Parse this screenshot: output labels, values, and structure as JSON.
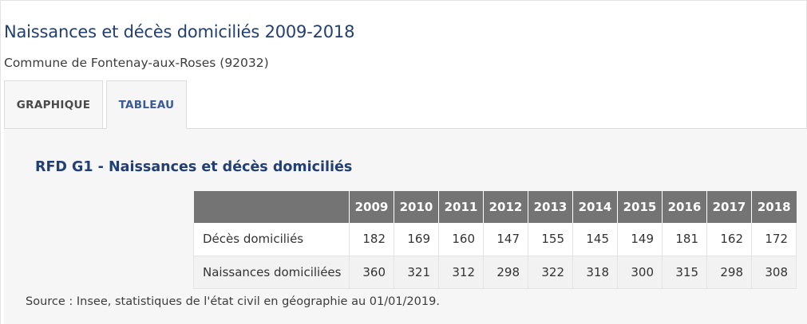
{
  "header": {
    "title": "Naissances et décès domiciliés 2009-2018",
    "subtitle": "Commune de Fontenay-aux-Roses (92032)"
  },
  "tabs": [
    {
      "label": "GRAPHIQUE",
      "active": false
    },
    {
      "label": "TABLEAU",
      "active": true
    }
  ],
  "panel": {
    "title": "RFD G1 - Naissances et décès domiciliés",
    "table": {
      "years": [
        "2009",
        "2010",
        "2011",
        "2012",
        "2013",
        "2014",
        "2015",
        "2016",
        "2017",
        "2018"
      ],
      "rows": [
        {
          "label": "Décès domiciliés",
          "values": [
            "182",
            "169",
            "160",
            "147",
            "155",
            "145",
            "149",
            "181",
            "162",
            "172"
          ]
        },
        {
          "label": "Naissances domiciliées",
          "values": [
            "360",
            "321",
            "312",
            "298",
            "322",
            "318",
            "300",
            "315",
            "298",
            "308"
          ]
        }
      ]
    },
    "source": "Source : Insee, statistiques de l'état civil en géographie au 01/01/2019."
  },
  "colors": {
    "title": "#233e73",
    "tab_active": "#3b5b94",
    "table_header": "#747474"
  }
}
